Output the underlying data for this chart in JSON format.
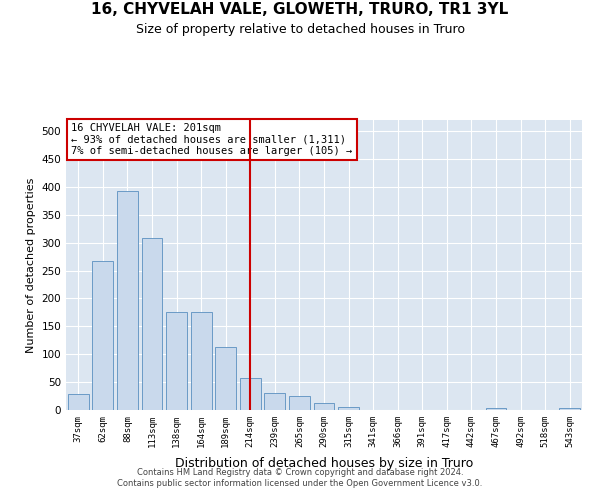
{
  "title": "16, CHYVELAH VALE, GLOWETH, TRURO, TR1 3YL",
  "subtitle": "Size of property relative to detached houses in Truro",
  "xlabel": "Distribution of detached houses by size in Truro",
  "ylabel": "Number of detached properties",
  "categories": [
    "37sqm",
    "62sqm",
    "88sqm",
    "113sqm",
    "138sqm",
    "164sqm",
    "189sqm",
    "214sqm",
    "239sqm",
    "265sqm",
    "290sqm",
    "315sqm",
    "341sqm",
    "366sqm",
    "391sqm",
    "417sqm",
    "442sqm",
    "467sqm",
    "492sqm",
    "518sqm",
    "543sqm"
  ],
  "values": [
    28,
    267,
    393,
    308,
    175,
    175,
    113,
    57,
    30,
    25,
    13,
    6,
    0,
    0,
    0,
    0,
    0,
    4,
    0,
    0,
    4
  ],
  "bar_color": "#c9d9ec",
  "bar_edge_color": "#5a8fc0",
  "vline_x": 7.0,
  "vline_color": "#cc0000",
  "annotation_text": "16 CHYVELAH VALE: 201sqm\n← 93% of detached houses are smaller (1,311)\n7% of semi-detached houses are larger (105) →",
  "annotation_box_color": "#ffffff",
  "annotation_box_edge": "#cc0000",
  "ylim": [
    0,
    520
  ],
  "yticks": [
    0,
    50,
    100,
    150,
    200,
    250,
    300,
    350,
    400,
    450,
    500
  ],
  "background_color": "#dce6f1",
  "footer_line1": "Contains HM Land Registry data © Crown copyright and database right 2024.",
  "footer_line2": "Contains public sector information licensed under the Open Government Licence v3.0.",
  "title_fontsize": 11,
  "subtitle_fontsize": 9,
  "xlabel_fontsize": 9,
  "ylabel_fontsize": 8
}
